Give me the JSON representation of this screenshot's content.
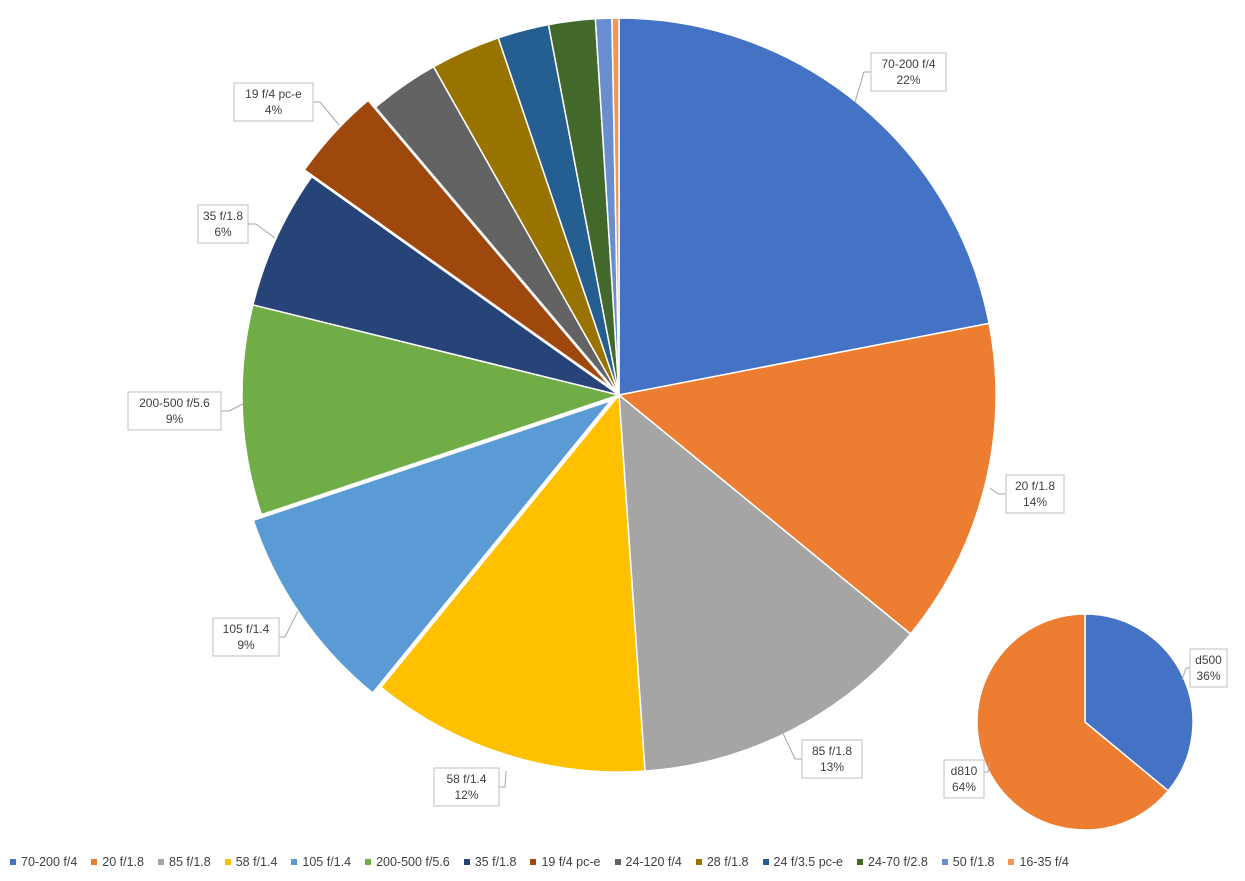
{
  "chart_data": [
    {
      "type": "pie",
      "series": [
        {
          "categories": [
            "70-200 f/4",
            "20 f/1.8",
            "85 f/1.8",
            "58 f/1.4",
            "105 f/1.4",
            "200-500 f/5.6",
            "35 f/1.8",
            "19 f/4 pc-e",
            "24-120 f/4",
            "28 f/1.8",
            "24 f/3.5 pc-e",
            "24-70 f/2.8",
            "50 f/1.8",
            "16-35 f/4"
          ],
          "values": [
            22.0,
            14.0,
            13.0,
            12.0,
            9.0,
            9.0,
            6.0,
            4.0,
            3.0,
            3.0,
            2.2,
            2.0,
            0.7,
            0.3
          ],
          "data_labels": [
            {
              "name": "70-200 f/4",
              "pct": "22%"
            },
            {
              "name": "20 f/1.8",
              "pct": "14%"
            },
            {
              "name": "85 f/1.8",
              "pct": "13%"
            },
            {
              "name": "58 f/1.4",
              "pct": "12%"
            },
            {
              "name": "105 f/1.4",
              "pct": "9%"
            },
            {
              "name": "200-500 f/5.6",
              "pct": "9%"
            },
            {
              "name": "35 f/1.8",
              "pct": "6%"
            },
            {
              "name": "19 f/4 pc-e",
              "pct": "4%"
            }
          ],
          "colors": [
            "#4472C4",
            "#ED7D31",
            "#A5A5A5",
            "#FFC000",
            "#5B9BD5",
            "#70AD47",
            "#264478",
            "#9E480E",
            "#636363",
            "#997300",
            "#255E91",
            "#43682B",
            "#698ED0",
            "#F1975A"
          ]
        }
      ],
      "legend": {
        "position": "bottom"
      }
    },
    {
      "type": "pie",
      "series": [
        {
          "categories": [
            "d500",
            "d810"
          ],
          "values": [
            36,
            64
          ],
          "data_labels": [
            {
              "name": "d500",
              "pct": "36%"
            },
            {
              "name": "d810",
              "pct": "64%"
            }
          ],
          "colors": [
            "#4472C4",
            "#ED7D31"
          ]
        }
      ]
    }
  ]
}
